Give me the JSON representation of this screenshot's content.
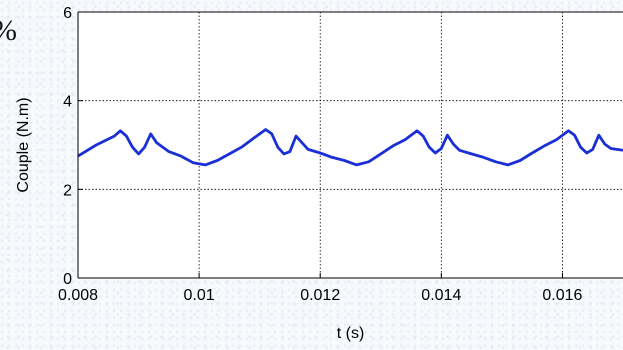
{
  "fragment": {
    "clipped_text": "%"
  },
  "chart_data": {
    "type": "line",
    "title": "",
    "xlabel": "t (s)",
    "ylabel": "Couple (N.m)",
    "xlim": [
      0.008,
      0.017
    ],
    "ylim": [
      0,
      6
    ],
    "xticks": [
      0.008,
      0.01,
      0.012,
      0.014,
      0.016
    ],
    "xtick_labels": [
      "0.008",
      "0.01",
      "0.012",
      "0.014",
      "0.016"
    ],
    "yticks": [
      0,
      2,
      4,
      6
    ],
    "ytick_labels": [
      "0",
      "2",
      "4",
      "6"
    ],
    "grid": true,
    "series_color": "#1a2fd6",
    "series": [
      {
        "x": [
          0.008,
          0.0083,
          0.0086,
          0.0087,
          0.0088,
          0.0089,
          0.009,
          0.0091,
          0.0092,
          0.0093,
          0.0095,
          0.0097,
          0.0099,
          0.0101,
          0.0103,
          0.0105,
          0.0107,
          0.0109,
          0.0111,
          0.0112,
          0.0113,
          0.0114,
          0.0115,
          0.0116,
          0.0117,
          0.0118,
          0.012,
          0.0122,
          0.0124,
          0.0126,
          0.0128,
          0.013,
          0.0132,
          0.0134,
          0.0136,
          0.0137,
          0.0138,
          0.0139,
          0.014,
          0.0141,
          0.0142,
          0.0143,
          0.0145,
          0.0147,
          0.0149,
          0.0151,
          0.0153,
          0.0155,
          0.0157,
          0.0159,
          0.0161,
          0.0162,
          0.0163,
          0.0164,
          0.0165,
          0.0166,
          0.0167,
          0.0168,
          0.017
        ],
        "y": [
          2.75,
          3.0,
          3.2,
          3.32,
          3.2,
          2.95,
          2.8,
          2.95,
          3.25,
          3.05,
          2.85,
          2.75,
          2.6,
          2.55,
          2.65,
          2.8,
          2.95,
          3.15,
          3.35,
          3.25,
          2.95,
          2.8,
          2.85,
          3.2,
          3.05,
          2.9,
          2.82,
          2.72,
          2.65,
          2.55,
          2.62,
          2.8,
          2.98,
          3.12,
          3.32,
          3.2,
          2.95,
          2.82,
          2.92,
          3.22,
          3.02,
          2.88,
          2.8,
          2.72,
          2.62,
          2.55,
          2.65,
          2.82,
          2.98,
          3.12,
          3.32,
          3.22,
          2.95,
          2.82,
          2.9,
          3.22,
          3.02,
          2.92,
          2.88
        ]
      }
    ]
  }
}
